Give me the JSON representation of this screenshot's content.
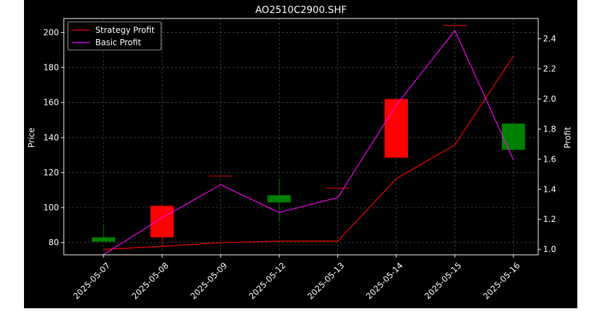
{
  "chart_data": {
    "type": "candlestick",
    "title": "AO2510C2900.SHF",
    "xlabel": "",
    "ylabel_left": "Price",
    "ylabel_right": "Profit",
    "categories": [
      "2025-05-07",
      "2025-05-08",
      "2025-05-09",
      "2025-05-12",
      "2025-05-13",
      "2025-05-14",
      "2025-05-15",
      "2025-05-16"
    ],
    "candles": [
      {
        "open": 80.5,
        "close": 83,
        "high": 90,
        "low": 80.5,
        "color": "green"
      },
      {
        "open": 101,
        "close": 83,
        "high": 101,
        "low": 78,
        "color": "red"
      },
      {
        "open": 118,
        "close": 118,
        "high": 118,
        "low": 118,
        "color": "red"
      },
      {
        "open": 103,
        "close": 107,
        "high": 116.5,
        "low": 92,
        "color": "green"
      },
      {
        "open": 111,
        "close": 111,
        "high": 111,
        "low": 111,
        "color": "red"
      },
      {
        "open": 162,
        "close": 128.5,
        "high": 162,
        "low": 128.5,
        "color": "red"
      },
      {
        "open": 204,
        "close": 204,
        "high": 204,
        "low": 204,
        "color": "red"
      },
      {
        "open": 133,
        "close": 148,
        "high": 148,
        "low": 133,
        "color": "green"
      }
    ],
    "ylim_left": [
      73,
      208
    ],
    "yticks_left": [
      80,
      100,
      120,
      140,
      160,
      180,
      200
    ],
    "ylim_right": [
      0.964,
      2.535
    ],
    "yticks_right": [
      1.0,
      1.2,
      1.4,
      1.6,
      1.8,
      2.0,
      2.2,
      2.4
    ],
    "series": [
      {
        "name": "Strategy Profit",
        "axis": "right",
        "color": "#ff0000",
        "values": [
          1.0,
          1.02,
          1.045,
          1.055,
          1.055,
          1.47,
          1.695,
          2.285
        ]
      },
      {
        "name": "Basic Profit",
        "axis": "right",
        "color": "#ff00ff",
        "values": [
          0.965,
          1.21,
          1.43,
          1.245,
          1.345,
          1.96,
          2.455,
          1.595
        ]
      }
    ],
    "grid": true,
    "legend_position": "top-left",
    "colors": {
      "up": "#008000",
      "down": "#ff0000",
      "background": "#000000",
      "axes": "#ffffff"
    }
  }
}
